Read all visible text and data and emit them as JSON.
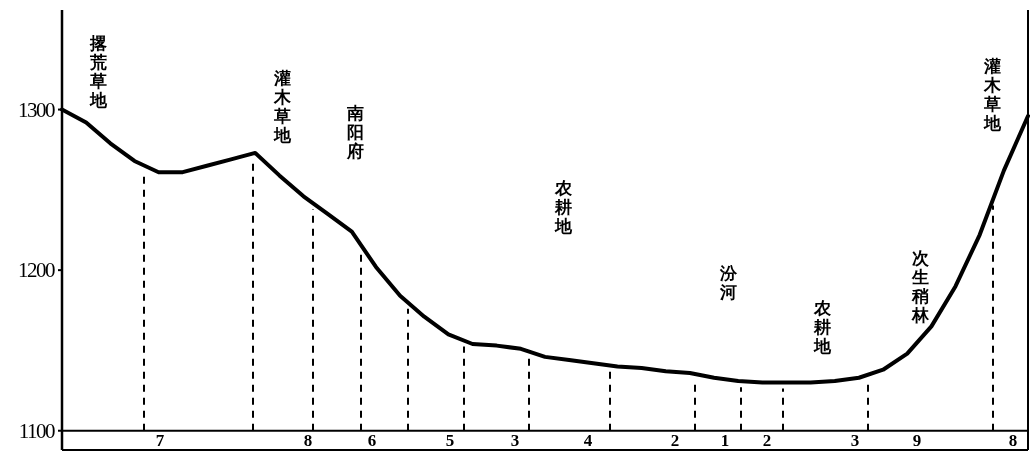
{
  "chart_data": {
    "type": "line",
    "color": "#000000",
    "ylim": [
      1088,
      1362
    ],
    "yticks": [
      1100,
      1200,
      1300
    ],
    "tick_labels": "y",
    "categories": [
      null,
      null,
      null,
      null,
      null,
      null,
      null,
      null,
      null,
      null,
      null,
      null,
      null,
      null,
      null,
      null,
      null,
      null,
      null,
      null,
      null,
      null,
      null,
      null,
      null,
      null,
      null,
      null,
      null,
      null,
      null,
      null,
      null,
      null,
      null,
      null,
      null,
      null,
      null,
      null,
      null
    ],
    "values": [
      1300,
      1292,
      1279,
      1268,
      1261,
      1261,
      1265,
      1269,
      1273,
      1259,
      1246,
      1235,
      1224,
      1202,
      1184,
      1171,
      1160,
      1154,
      1153,
      1151,
      1146,
      1144,
      1142,
      1140,
      1139,
      1137,
      1136,
      1133,
      1131,
      1130,
      1130,
      1130,
      1131,
      1133,
      1138,
      1148,
      1165,
      1190,
      1222,
      1262,
      1296
    ],
    "ref_lines": [
      {
        "axis": "y",
        "value": 1100,
        "line_style": "solid"
      }
    ],
    "annotations": [
      "撂荒草地",
      "灌木草地",
      "南阳府",
      "农耕地",
      "汾河",
      "农耕地",
      "次生稍林",
      "灌木草地",
      "7",
      "8",
      "6",
      "5",
      "3",
      "4",
      "2",
      "1",
      "2",
      "3",
      "9",
      "8"
    ]
  }
}
